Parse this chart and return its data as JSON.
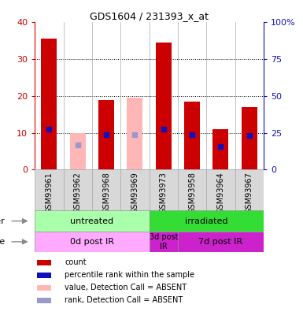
{
  "title": "GDS1604 / 231393_x_at",
  "samples": [
    "GSM93961",
    "GSM93962",
    "GSM93968",
    "GSM93969",
    "GSM93973",
    "GSM93958",
    "GSM93964",
    "GSM93967"
  ],
  "count_values": [
    35.5,
    null,
    19.0,
    null,
    34.5,
    18.5,
    11.0,
    17.0
  ],
  "count_absent": [
    null,
    10.0,
    null,
    19.5,
    null,
    null,
    null,
    null
  ],
  "rank_values": [
    27.5,
    null,
    24.0,
    null,
    27.5,
    23.5,
    16.0,
    23.0
  ],
  "rank_absent": [
    null,
    17.0,
    null,
    23.5,
    null,
    null,
    null,
    null
  ],
  "ylim_left": [
    0,
    40
  ],
  "ylim_right": [
    0,
    100
  ],
  "yticks_left": [
    0,
    10,
    20,
    30,
    40
  ],
  "yticks_right": [
    0,
    25,
    50,
    75,
    100
  ],
  "yticklabels_right": [
    "0",
    "25",
    "50",
    "75",
    "100%"
  ],
  "bar_color": "#CC0000",
  "bar_absent_color": "#FFB6B6",
  "rank_color": "#1111BB",
  "rank_absent_color": "#9999CC",
  "bg_gray": "#D8D8D8",
  "group_other": [
    {
      "label": "untreated",
      "start": 0,
      "end": 4,
      "color": "#AAFFAA"
    },
    {
      "label": "irradiated",
      "start": 4,
      "end": 8,
      "color": "#33DD33"
    }
  ],
  "group_time": [
    {
      "label": "0d post IR",
      "start": 0,
      "end": 4,
      "color": "#FFAAFF"
    },
    {
      "label": "3d post\nIR",
      "start": 4,
      "end": 5,
      "color": "#CC22CC"
    },
    {
      "label": "7d post IR",
      "start": 5,
      "end": 8,
      "color": "#CC22CC"
    }
  ],
  "legend_items": [
    {
      "label": "count",
      "color": "#CC0000"
    },
    {
      "label": "percentile rank within the sample",
      "color": "#1111BB"
    },
    {
      "label": "value, Detection Call = ABSENT",
      "color": "#FFB6B6"
    },
    {
      "label": "rank, Detection Call = ABSENT",
      "color": "#9999CC"
    }
  ]
}
